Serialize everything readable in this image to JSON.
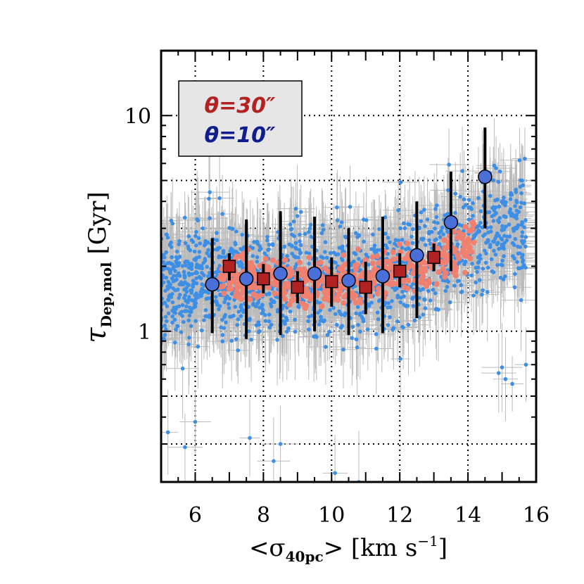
{
  "chart_data": {
    "type": "scatter",
    "title": "",
    "xlabel": "<σ40pc> [km s−1]",
    "xlabel_parts": {
      "open": "<σ",
      "sub": "40pc",
      "close": "> [km s",
      "sup": "−1",
      "end": "]"
    },
    "ylabel": "τDep,mol [Gyr]",
    "ylabel_parts": {
      "main": "τ",
      "sub": "Dep,mol",
      "unit": " [Gyr]"
    },
    "xlim": [
      5,
      16
    ],
    "ylim": [
      0.2,
      20
    ],
    "yscale": "log",
    "grid": true,
    "x_ticks": [
      6,
      8,
      10,
      12,
      14,
      16
    ],
    "x_tick_labels": [
      "6",
      "8",
      "10",
      "12",
      "14",
      "16"
    ],
    "y_ticks": [
      1,
      10
    ],
    "y_tick_labels": [
      "1",
      "10"
    ],
    "legend": {
      "position": "top-left",
      "entries": [
        {
          "label": "θ=30″",
          "color": "#b22222"
        },
        {
          "label": "θ=10″",
          "color": "#0f1e8c"
        }
      ]
    },
    "series": [
      {
        "name": "θ=30″ individual points",
        "marker": "dot",
        "color": "#f08070",
        "x_range": [
          6.7,
          14.2
        ],
        "y_center": [
          1.8,
          1.8,
          1.75,
          1.7,
          1.65,
          1.7,
          1.8,
          1.9,
          2.0,
          2.3,
          2.6
        ],
        "x_anchor": [
          6.7,
          7.5,
          8.3,
          9.0,
          9.8,
          10.5,
          11.3,
          12.0,
          12.8,
          13.5,
          14.2
        ]
      },
      {
        "name": "θ=10″ individual points",
        "marker": "dot",
        "color": "#3d8fe6",
        "errorbar_color": "#bbbbbb",
        "x_range": [
          5.0,
          15.7
        ],
        "y_range": [
          0.2,
          9
        ]
      },
      {
        "name": "θ=30″ binned median",
        "marker": "square",
        "color": "#b22222",
        "x": [
          7,
          8,
          9,
          10,
          11,
          12,
          13
        ],
        "y": [
          2.0,
          1.75,
          1.6,
          1.7,
          1.6,
          1.9,
          2.2
        ],
        "y_low": [
          1.72,
          1.5,
          1.35,
          1.3,
          1.2,
          1.6,
          1.9
        ],
        "y_high": [
          2.3,
          2.05,
          1.9,
          2.2,
          2.1,
          2.3,
          2.55
        ]
      },
      {
        "name": "θ=10″ binned median",
        "marker": "circle",
        "color": "#4a6fd8",
        "x": [
          6.5,
          7.5,
          8.5,
          9.5,
          10.5,
          11.5,
          12.5,
          13.5,
          14.5
        ],
        "y": [
          1.65,
          1.75,
          1.85,
          1.85,
          1.72,
          1.8,
          2.25,
          3.2,
          5.2
        ],
        "y_low": [
          0.98,
          0.92,
          0.96,
          1.0,
          0.96,
          0.98,
          1.15,
          1.9,
          3.0
        ],
        "y_high": [
          2.7,
          3.3,
          3.6,
          3.4,
          3.0,
          3.4,
          4.0,
          5.5,
          8.8
        ]
      }
    ]
  }
}
